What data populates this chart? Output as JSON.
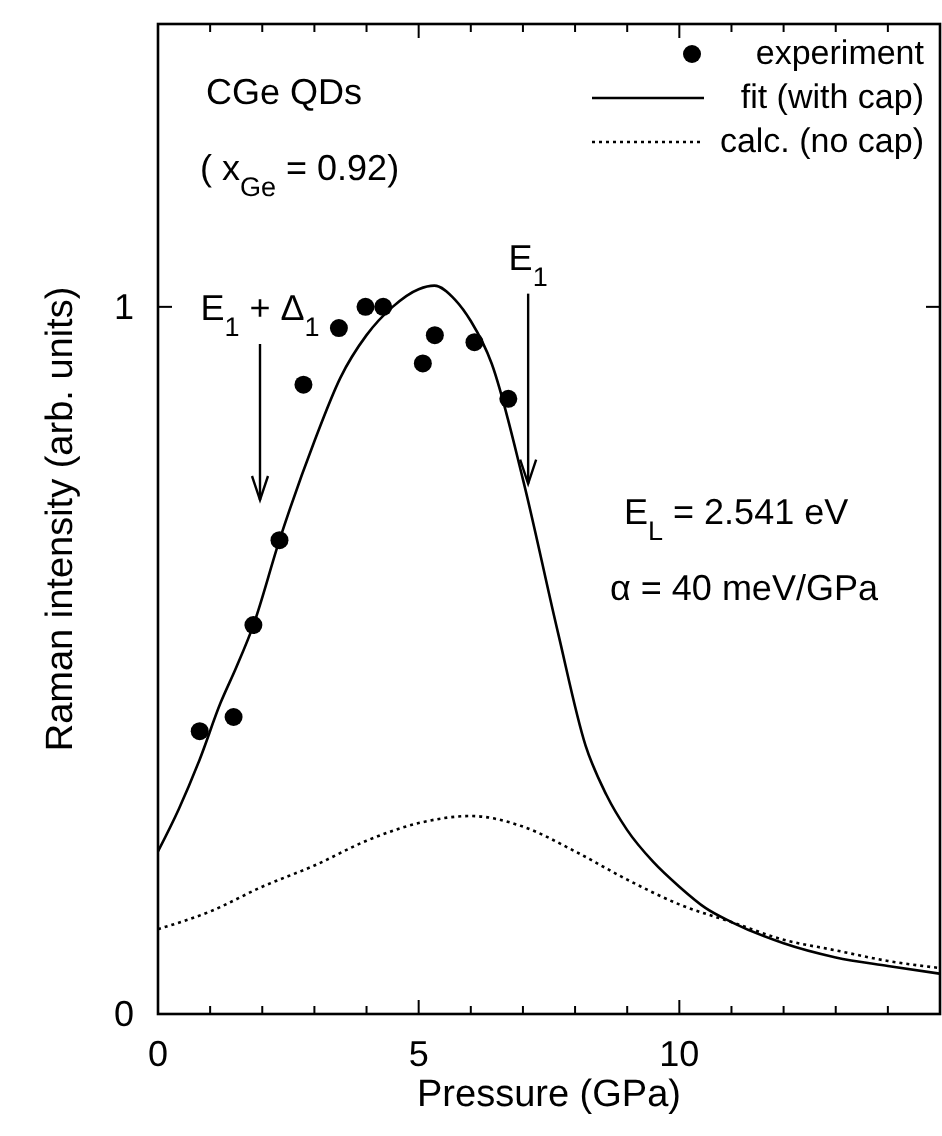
{
  "chart_data": {
    "type": "line",
    "xlabel": "Pressure (GPa)",
    "ylabel": "Raman intensity (arb. units)",
    "xlim": [
      0,
      15
    ],
    "ylim": [
      0,
      1.4
    ],
    "xticks": [
      0,
      {
        "value": 1,
        "label": null
      },
      {
        "value": 2,
        "label": null
      },
      {
        "value": 3,
        "label": null
      },
      {
        "value": 4,
        "label": null
      },
      5,
      {
        "value": 6,
        "label": null
      },
      {
        "value": 7,
        "label": null
      },
      {
        "value": 8,
        "label": null
      },
      {
        "value": 9,
        "label": null
      },
      10,
      {
        "value": 11,
        "label": null
      },
      {
        "value": 12,
        "label": null
      },
      {
        "value": 13,
        "label": null
      },
      {
        "value": 14,
        "label": null
      }
    ],
    "yticks": [
      0,
      1
    ],
    "grid": false,
    "legend": "top right",
    "series": [
      {
        "name": "experiment",
        "type": "scatter",
        "marker": "circle",
        "color": "#000000",
        "x": [
          0.8,
          1.45,
          1.83,
          2.33,
          2.79,
          3.47,
          3.98,
          4.32,
          5.08,
          5.31,
          6.07,
          6.72
        ],
        "values": [
          0.4,
          0.42,
          0.55,
          0.67,
          0.89,
          0.97,
          1.0,
          1.0,
          0.92,
          0.96,
          0.95,
          0.87
        ]
      },
      {
        "name": "fit (with cap)",
        "line_style": "solid",
        "color": "#000000",
        "x": [
          0,
          0.4,
          0.8,
          1.2,
          1.5,
          1.83,
          2.33,
          3,
          3.5,
          4,
          4.5,
          5,
          5.3,
          5.7,
          6,
          6.4,
          7,
          7.67,
          8.2,
          8.6,
          9,
          9.5,
          10,
          10.5,
          11,
          12,
          13,
          14,
          15
        ],
        "values": [
          0.23,
          0.29,
          0.36,
          0.44,
          0.49,
          0.55,
          0.67,
          0.81,
          0.9,
          0.96,
          1.0,
          1.025,
          1.03,
          1.01,
          0.98,
          0.92,
          0.756,
          0.54,
          0.38,
          0.31,
          0.26,
          0.215,
          0.18,
          0.15,
          0.13,
          0.1,
          0.08,
          0.068,
          0.057
        ]
      },
      {
        "name": "calc. (no cap)",
        "line_style": "dotted",
        "color": "#000000",
        "x": [
          0,
          1,
          2,
          3,
          4,
          5,
          6,
          7,
          8,
          9,
          10,
          11,
          12,
          13,
          14,
          15
        ],
        "values": [
          0.12,
          0.145,
          0.18,
          0.21,
          0.245,
          0.27,
          0.28,
          0.265,
          0.23,
          0.19,
          0.155,
          0.13,
          0.105,
          0.09,
          0.075,
          0.065
        ]
      }
    ],
    "annotations": [
      "CGe  QDs",
      "( x$_{Ge}$ = 0.92)",
      "E$_{1}$ + Δ$_{1}$",
      {
        "text": "E$_{1}$",
        "x": 7.1,
        "y": 0.75
      },
      "E$_{L}$ = 2.541 eV",
      "α = 40 meV/GPa"
    ]
  }
}
